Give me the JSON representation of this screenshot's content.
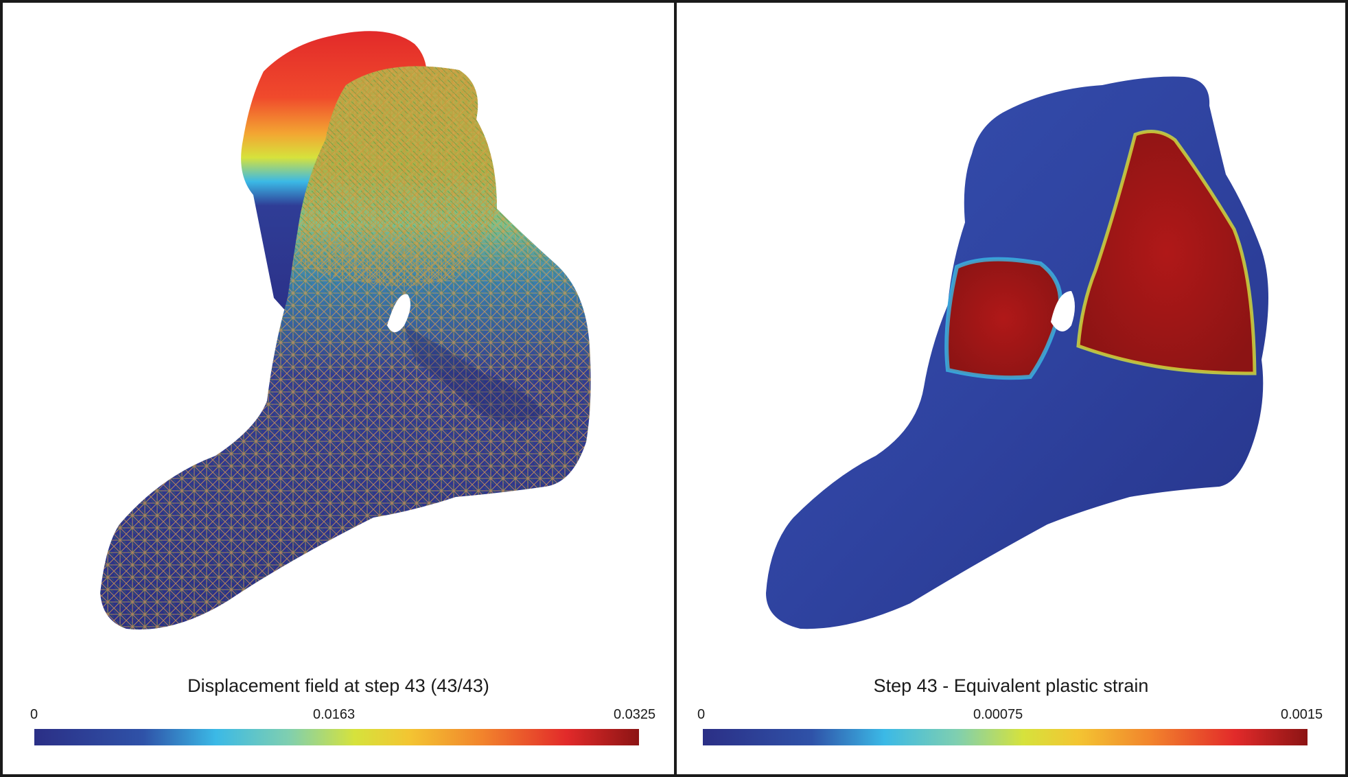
{
  "panels": [
    {
      "title": "Displacement field at step 43 (43/43)",
      "colorbar": {
        "min_label": "0",
        "mid_label": "0.0163",
        "max_label": "0.0325"
      }
    },
    {
      "title": "Step 43 - Equivalent plastic strain",
      "colorbar": {
        "min_label": "0",
        "mid_label": "0.00075",
        "max_label": "0.0015"
      }
    }
  ],
  "colors": {
    "low": "#2b2f86",
    "mid": "#d6e23c",
    "high": "#8c1414",
    "mesh_line": "#d9a24a",
    "mesh_line_alt": "#3f8a3a"
  }
}
